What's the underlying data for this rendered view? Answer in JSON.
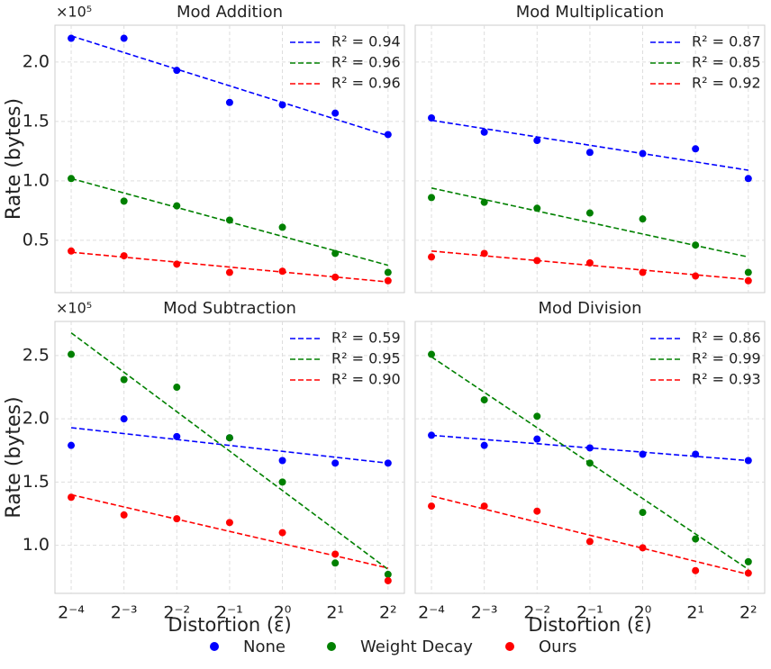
{
  "chart_data": {
    "type": "scatter",
    "xscale": "log",
    "xbase": 2,
    "x": [
      0.0625,
      0.125,
      0.25,
      0.5,
      1,
      2,
      4
    ],
    "xlim": [
      0.0505,
      4.96
    ],
    "xticks": [
      {
        "value": 0.0625,
        "label": "2⁻⁴"
      },
      {
        "value": 0.125,
        "label": "2⁻³"
      },
      {
        "value": 0.25,
        "label": "2⁻²"
      },
      {
        "value": 0.5,
        "label": "2⁻¹"
      },
      {
        "value": 1,
        "label": "2⁰"
      },
      {
        "value": 2,
        "label": "2¹"
      },
      {
        "value": 4,
        "label": "2²"
      }
    ],
    "xlabel": "Distortion (ε)",
    "ylabel": "Rate (bytes)",
    "y_offset_label": "×10⁵",
    "grid": true,
    "legend_position": "upper right",
    "series": [
      {
        "name": "None",
        "color": "#0000ff"
      },
      {
        "name": "Weight Decay",
        "color": "#008000"
      },
      {
        "name": "Ours",
        "color": "#ff0000"
      }
    ],
    "rows": [
      {
        "ylim": [
          0.06,
          2.31
        ],
        "yticks": [
          0.5,
          {
            "value": 1,
            "label": "1.0"
          },
          1.5,
          {
            "value": 2,
            "label": "2.0"
          }
        ],
        "panels": [
          {
            "title": "Mod Addition",
            "data": [
              {
                "values": [
                  2.2,
                  2.2,
                  1.93,
                  1.66,
                  1.64,
                  1.57,
                  1.39
                ],
                "fit": [
                  2.22,
                  1.38
                ],
                "fit_label": "R² = 0.94"
              },
              {
                "values": [
                  1.02,
                  0.83,
                  0.79,
                  0.67,
                  0.61,
                  0.39,
                  0.23
                ],
                "fit": [
                  1.02,
                  0.29
                ],
                "fit_label": "R² = 0.96"
              },
              {
                "values": [
                  0.41,
                  0.37,
                  0.3,
                  0.23,
                  0.24,
                  0.19,
                  0.16
                ],
                "fit": [
                  0.4,
                  0.15
                ],
                "fit_label": "R² = 0.96"
              }
            ]
          },
          {
            "title": "Mod Multiplication",
            "data": [
              {
                "values": [
                  1.53,
                  1.41,
                  1.34,
                  1.24,
                  1.23,
                  1.27,
                  1.02
                ],
                "fit": [
                  1.51,
                  1.09
                ],
                "fit_label": "R² = 0.87"
              },
              {
                "values": [
                  0.86,
                  0.82,
                  0.77,
                  0.73,
                  0.68,
                  0.46,
                  0.23
                ],
                "fit": [
                  0.94,
                  0.36
                ],
                "fit_label": "R² = 0.85"
              },
              {
                "values": [
                  0.36,
                  0.39,
                  0.33,
                  0.31,
                  0.23,
                  0.2,
                  0.16
                ],
                "fit": [
                  0.41,
                  0.17
                ],
                "fit_label": "R² = 0.92"
              }
            ]
          }
        ]
      },
      {
        "ylim": [
          0.62,
          2.77
        ],
        "yticks": [
          {
            "value": 1,
            "label": "1.0"
          },
          1.5,
          {
            "value": 2,
            "label": "2.0"
          },
          2.5
        ],
        "panels": [
          {
            "title": "Mod Subtraction",
            "data": [
              {
                "values": [
                  1.79,
                  2.0,
                  1.86,
                  1.85,
                  1.67,
                  1.65,
                  1.65
                ],
                "fit": [
                  1.93,
                  1.65
                ],
                "fit_label": "R² = 0.59"
              },
              {
                "values": [
                  2.51,
                  2.31,
                  2.25,
                  1.85,
                  1.5,
                  0.86,
                  0.77
                ],
                "fit": [
                  2.68,
                  0.81
                ],
                "fit_label": "R² = 0.95"
              },
              {
                "values": [
                  1.38,
                  1.24,
                  1.21,
                  1.18,
                  1.1,
                  0.93,
                  0.72
                ],
                "fit": [
                  1.4,
                  0.82
                ],
                "fit_label": "R² = 0.90"
              }
            ]
          },
          {
            "title": "Mod Division",
            "data": [
              {
                "values": [
                  1.87,
                  1.79,
                  1.84,
                  1.77,
                  1.72,
                  1.72,
                  1.67
                ],
                "fit": [
                  1.87,
                  1.67
                ],
                "fit_label": "R² = 0.86"
              },
              {
                "values": [
                  2.51,
                  2.15,
                  2.02,
                  1.65,
                  1.26,
                  1.05,
                  0.87
                ],
                "fit": [
                  2.49,
                  0.81
                ],
                "fit_label": "R² = 0.99"
              },
              {
                "values": [
                  1.31,
                  1.31,
                  1.27,
                  1.03,
                  0.98,
                  0.8,
                  0.78
                ],
                "fit": [
                  1.39,
                  0.77
                ],
                "fit_label": "R² = 0.93"
              }
            ]
          }
        ]
      }
    ]
  }
}
